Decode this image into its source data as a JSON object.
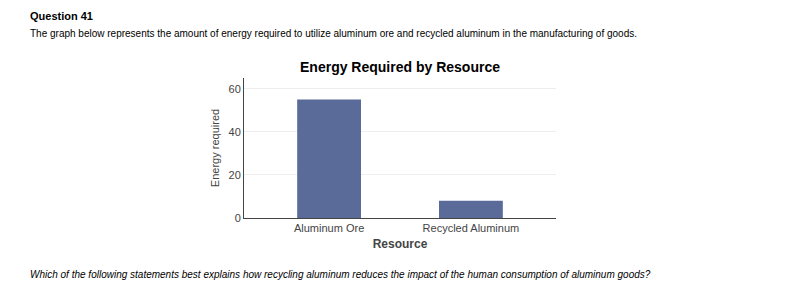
{
  "chart_data": {
    "type": "bar",
    "title": "Energy Required by Resource",
    "subtitle": "The graph below represents the amount of energy required to utilize aluminum ore and recycled aluminum in the manufacturing of goods.",
    "xlabel": "Resource",
    "ylabel": "Energy required",
    "categories": [
      "Aluminum Ore",
      "Recycled Aluminum"
    ],
    "values": [
      55,
      8
    ],
    "color": "#5a6b9a",
    "ylim": [
      0,
      65
    ],
    "yticks": [
      0,
      20,
      40,
      60
    ],
    "grid": true,
    "annotations": [
      "Question 41",
      "Which of the following statements best explains how recycling aluminum reduces the impact of the human consumption of aluminum goods?"
    ]
  }
}
